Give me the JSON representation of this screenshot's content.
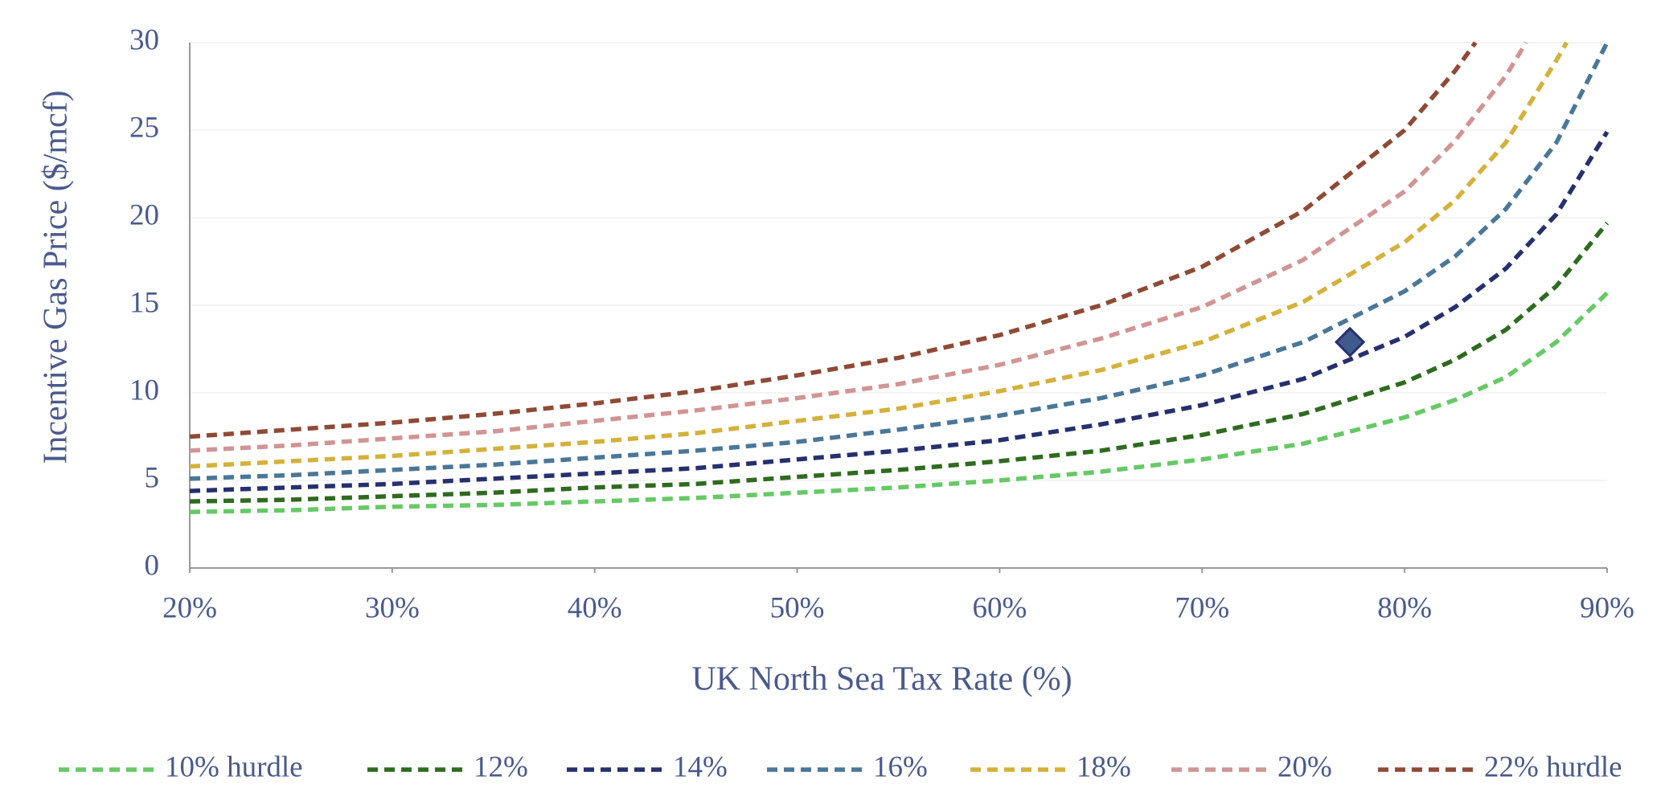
{
  "chart_data": {
    "type": "line",
    "xlabel": "UK North Sea Tax Rate (%)",
    "ylabel": "Incentive Gas Price ($/mcf)",
    "xlim": [
      20,
      90
    ],
    "ylim": [
      0,
      30
    ],
    "xticks": [
      {
        "value": 20,
        "label": "20%"
      },
      {
        "value": 30,
        "label": "30%"
      },
      {
        "value": 40,
        "label": "40%"
      },
      {
        "value": 50,
        "label": "50%"
      },
      {
        "value": 60,
        "label": "60%"
      },
      {
        "value": 70,
        "label": "70%"
      },
      {
        "value": 80,
        "label": "80%"
      },
      {
        "value": 90,
        "label": "90%"
      }
    ],
    "yticks": [
      0,
      5,
      10,
      15,
      20,
      25,
      30
    ],
    "grid": true,
    "legend": "bottom",
    "series": [
      {
        "name": "10% hurdle",
        "color": "#66c966",
        "x": [
          20,
          25,
          30,
          35,
          40,
          45,
          50,
          55,
          60,
          65,
          70,
          75,
          80,
          82.5,
          85,
          87.5,
          90
        ],
        "values": [
          3.2,
          3.3,
          3.5,
          3.6,
          3.8,
          4.0,
          4.3,
          4.6,
          5.0,
          5.5,
          6.2,
          7.1,
          8.6,
          9.6,
          10.9,
          12.9,
          15.7
        ]
      },
      {
        "name": "12%",
        "color": "#2e6b1f",
        "x": [
          20,
          25,
          30,
          35,
          40,
          45,
          50,
          55,
          60,
          65,
          70,
          75,
          80,
          82.5,
          85,
          87.5,
          90
        ],
        "values": [
          3.8,
          3.9,
          4.1,
          4.3,
          4.6,
          4.8,
          5.2,
          5.6,
          6.1,
          6.7,
          7.6,
          8.8,
          10.6,
          11.9,
          13.6,
          16.1,
          19.7
        ]
      },
      {
        "name": "14%",
        "color": "#27306e",
        "x": [
          20,
          25,
          30,
          35,
          40,
          45,
          50,
          55,
          60,
          65,
          70,
          75,
          80,
          82.5,
          85,
          87.5,
          90
        ],
        "values": [
          4.4,
          4.6,
          4.8,
          5.1,
          5.4,
          5.7,
          6.2,
          6.7,
          7.3,
          8.2,
          9.3,
          10.8,
          13.2,
          14.9,
          17.1,
          20.2,
          24.9
        ]
      },
      {
        "name": "16%",
        "color": "#4a7799",
        "x": [
          20,
          25,
          30,
          35,
          40,
          45,
          50,
          55,
          60,
          65,
          70,
          75,
          80,
          82.5,
          85,
          87.5,
          90
        ],
        "values": [
          5.1,
          5.3,
          5.6,
          5.9,
          6.3,
          6.7,
          7.2,
          7.9,
          8.7,
          9.7,
          11.0,
          12.9,
          15.8,
          17.8,
          20.5,
          24.3,
          30.0
        ]
      },
      {
        "name": "18%",
        "color": "#d4b13b",
        "x": [
          20,
          25,
          30,
          35,
          40,
          45,
          50,
          55,
          60,
          65,
          70,
          75,
          80,
          82.5,
          85,
          87.5,
          88
        ],
        "values": [
          5.8,
          6.1,
          6.4,
          6.8,
          7.2,
          7.7,
          8.4,
          9.1,
          10.1,
          11.3,
          12.9,
          15.2,
          18.6,
          21.0,
          24.3,
          29.0,
          30.0
        ]
      },
      {
        "name": "20%",
        "color": "#d19494",
        "x": [
          20,
          25,
          30,
          35,
          40,
          45,
          50,
          55,
          60,
          65,
          70,
          75,
          80,
          82.5,
          85,
          86
        ],
        "values": [
          6.7,
          7.0,
          7.4,
          7.8,
          8.4,
          9.0,
          9.7,
          10.5,
          11.6,
          13.1,
          14.9,
          17.6,
          21.5,
          24.4,
          28.1,
          30.0
        ]
      },
      {
        "name": "22% hurdle",
        "color": "#8f4a35",
        "x": [
          20,
          25,
          30,
          35,
          40,
          45,
          50,
          55,
          60,
          65,
          70,
          75,
          80,
          82.5,
          83.5
        ],
        "values": [
          7.5,
          7.9,
          8.3,
          8.8,
          9.4,
          10.1,
          11.0,
          12.0,
          13.3,
          15.0,
          17.2,
          20.4,
          25.0,
          28.4,
          30.0
        ]
      }
    ],
    "highlight": {
      "x": 77.3,
      "y": 12.9,
      "color": "#3f5a8c"
    }
  }
}
